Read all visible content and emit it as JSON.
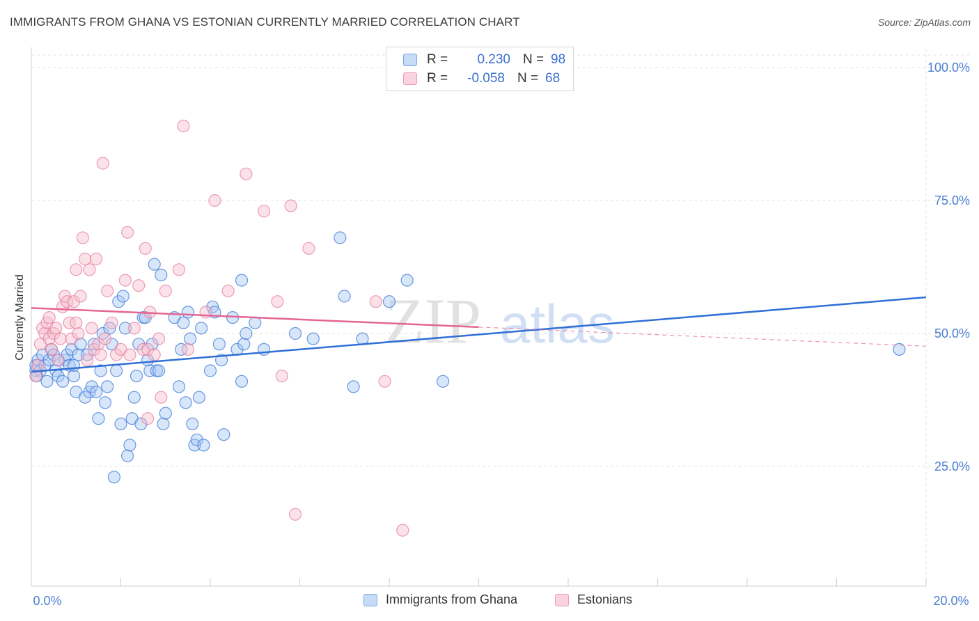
{
  "header": {
    "title": "IMMIGRANTS FROM GHANA VS ESTONIAN CURRENTLY MARRIED CORRELATION CHART",
    "source": "Source: ZipAtlas.com"
  },
  "watermark": {
    "zip": "ZIP",
    "atlas": "atlas"
  },
  "legend_top": {
    "rows": [
      {
        "r_label": "R =",
        "r_value": "0.230",
        "n_label": "N =",
        "n_value": "98",
        "color": "#a9c8f2"
      },
      {
        "r_label": "R =",
        "r_value": "-0.058",
        "n_label": "N =",
        "n_value": "68",
        "color": "#f7bccd"
      }
    ]
  },
  "legend_bottom": {
    "items": [
      {
        "label": "Immigrants from Ghana",
        "color": "#a9c8f2"
      },
      {
        "label": "Estonians",
        "color": "#f7bccd"
      }
    ]
  },
  "chart_data": {
    "type": "scatter",
    "title": "IMMIGRANTS FROM GHANA VS ESTONIAN CURRENTLY MARRIED CORRELATION CHART",
    "xlabel": "",
    "ylabel": "Currently Married",
    "xlim": [
      0,
      20
    ],
    "ylim": [
      0,
      105
    ],
    "x_tick_labels": [
      "0.0%",
      "20.0%"
    ],
    "y_ticks": [
      25,
      50,
      75,
      100
    ],
    "y_tick_labels": [
      "25.0%",
      "50.0%",
      "75.0%",
      "100.0%"
    ],
    "grid": true,
    "legend_position": "top-center",
    "colors": {
      "ghana_fill": "#a9c8f2",
      "ghana_stroke": "#3b78d8",
      "ghana_line": "#2f6fd6",
      "est_fill": "#f7bccd",
      "est_stroke": "#e57fa0",
      "est_line": "#e46592",
      "axis_text": "#4a7fd4"
    },
    "series": [
      {
        "name": "Immigrants from Ghana",
        "r": 0.23,
        "n": 98,
        "trend": {
          "x": [
            0,
            20
          ],
          "y": [
            42.8,
            56.8
          ]
        },
        "points": [
          [
            0.1,
            43
          ],
          [
            0.1,
            44
          ],
          [
            0.15,
            45
          ],
          [
            0.2,
            43
          ],
          [
            0.25,
            46
          ],
          [
            0.3,
            44
          ],
          [
            0.35,
            41
          ],
          [
            0.4,
            45
          ],
          [
            0.45,
            47
          ],
          [
            0.5,
            46
          ],
          [
            0.55,
            43
          ],
          [
            0.6,
            42
          ],
          [
            0.7,
            41
          ],
          [
            0.75,
            45
          ],
          [
            0.8,
            46
          ],
          [
            0.85,
            44
          ],
          [
            0.9,
            47
          ],
          [
            0.95,
            42
          ],
          [
            1.0,
            39
          ],
          [
            1.05,
            46
          ],
          [
            1.1,
            48
          ],
          [
            1.2,
            38
          ],
          [
            1.25,
            46
          ],
          [
            1.3,
            39
          ],
          [
            1.35,
            40
          ],
          [
            1.4,
            48
          ],
          [
            1.45,
            39
          ],
          [
            1.5,
            34
          ],
          [
            1.55,
            43
          ],
          [
            1.6,
            50
          ],
          [
            1.65,
            37
          ],
          [
            1.7,
            40
          ],
          [
            1.75,
            51
          ],
          [
            1.8,
            48
          ],
          [
            1.85,
            23
          ],
          [
            1.9,
            43
          ],
          [
            1.95,
            56
          ],
          [
            2.0,
            33
          ],
          [
            2.05,
            57
          ],
          [
            2.1,
            51
          ],
          [
            2.15,
            27
          ],
          [
            2.2,
            29
          ],
          [
            2.25,
            34
          ],
          [
            2.3,
            38
          ],
          [
            2.35,
            42
          ],
          [
            2.4,
            48
          ],
          [
            2.45,
            33
          ],
          [
            2.5,
            53
          ],
          [
            2.55,
            53
          ],
          [
            2.6,
            45
          ],
          [
            2.65,
            43
          ],
          [
            2.7,
            48
          ],
          [
            2.75,
            63
          ],
          [
            2.8,
            43
          ],
          [
            2.85,
            43
          ],
          [
            2.9,
            61
          ],
          [
            2.95,
            33
          ],
          [
            3.0,
            35
          ],
          [
            3.2,
            53
          ],
          [
            3.3,
            40
          ],
          [
            3.35,
            47
          ],
          [
            3.4,
            52
          ],
          [
            3.45,
            37
          ],
          [
            3.5,
            54
          ],
          [
            3.55,
            49
          ],
          [
            3.6,
            33
          ],
          [
            3.65,
            29
          ],
          [
            3.7,
            30
          ],
          [
            3.75,
            38
          ],
          [
            3.8,
            51
          ],
          [
            3.85,
            29
          ],
          [
            4.0,
            43
          ],
          [
            4.05,
            55
          ],
          [
            4.1,
            54
          ],
          [
            4.2,
            48
          ],
          [
            4.25,
            45
          ],
          [
            4.3,
            31
          ],
          [
            4.5,
            53
          ],
          [
            4.6,
            47
          ],
          [
            4.7,
            60
          ],
          [
            4.75,
            48
          ],
          [
            4.8,
            50
          ],
          [
            5.0,
            52
          ],
          [
            5.2,
            47
          ],
          [
            5.9,
            50
          ],
          [
            6.3,
            49
          ],
          [
            6.9,
            68
          ],
          [
            7.0,
            57
          ],
          [
            7.2,
            40
          ],
          [
            7.4,
            49
          ],
          [
            8.0,
            56
          ],
          [
            8.4,
            60
          ],
          [
            9.2,
            41
          ],
          [
            19.4,
            47
          ],
          [
            0.12,
            42
          ],
          [
            0.6,
            45
          ],
          [
            0.95,
            44
          ],
          [
            4.7,
            41
          ]
        ]
      },
      {
        "name": "Estonians",
        "r": -0.058,
        "n": 68,
        "trend": {
          "x": [
            0,
            10
          ],
          "y": [
            54.8,
            51.2
          ]
        },
        "trend_dashed": {
          "x": [
            10,
            20
          ],
          "y": [
            51.2,
            47.6
          ]
        },
        "points": [
          [
            0.1,
            42
          ],
          [
            0.15,
            44
          ],
          [
            0.2,
            48
          ],
          [
            0.25,
            51
          ],
          [
            0.3,
            50
          ],
          [
            0.35,
            52
          ],
          [
            0.4,
            49
          ],
          [
            0.45,
            47
          ],
          [
            0.5,
            50
          ],
          [
            0.55,
            51
          ],
          [
            0.6,
            45
          ],
          [
            0.65,
            49
          ],
          [
            0.7,
            55
          ],
          [
            0.75,
            57
          ],
          [
            0.8,
            56
          ],
          [
            0.85,
            52
          ],
          [
            0.9,
            49
          ],
          [
            0.95,
            56
          ],
          [
            1.0,
            62
          ],
          [
            1.05,
            50
          ],
          [
            1.1,
            57
          ],
          [
            1.15,
            68
          ],
          [
            1.2,
            64
          ],
          [
            1.25,
            45
          ],
          [
            1.3,
            62
          ],
          [
            1.35,
            51
          ],
          [
            1.4,
            47
          ],
          [
            1.45,
            64
          ],
          [
            1.5,
            48
          ],
          [
            1.55,
            46
          ],
          [
            1.6,
            82
          ],
          [
            1.65,
            49
          ],
          [
            1.7,
            58
          ],
          [
            1.8,
            52
          ],
          [
            1.9,
            46
          ],
          [
            2.0,
            47
          ],
          [
            2.1,
            60
          ],
          [
            2.15,
            69
          ],
          [
            2.2,
            46
          ],
          [
            2.3,
            51
          ],
          [
            2.4,
            59
          ],
          [
            2.5,
            47
          ],
          [
            2.55,
            66
          ],
          [
            2.6,
            47
          ],
          [
            2.65,
            54
          ],
          [
            2.75,
            46
          ],
          [
            2.85,
            49
          ],
          [
            2.9,
            38
          ],
          [
            3.0,
            58
          ],
          [
            3.3,
            62
          ],
          [
            3.4,
            89
          ],
          [
            3.5,
            47
          ],
          [
            3.9,
            54
          ],
          [
            4.1,
            75
          ],
          [
            4.4,
            58
          ],
          [
            4.8,
            80
          ],
          [
            5.2,
            73
          ],
          [
            5.5,
            56
          ],
          [
            5.6,
            42
          ],
          [
            5.8,
            74
          ],
          [
            5.9,
            16
          ],
          [
            6.2,
            66
          ],
          [
            7.7,
            56
          ],
          [
            7.9,
            41
          ],
          [
            8.3,
            13
          ],
          [
            1.0,
            52
          ],
          [
            0.4,
            53
          ],
          [
            2.6,
            34
          ]
        ]
      }
    ]
  }
}
